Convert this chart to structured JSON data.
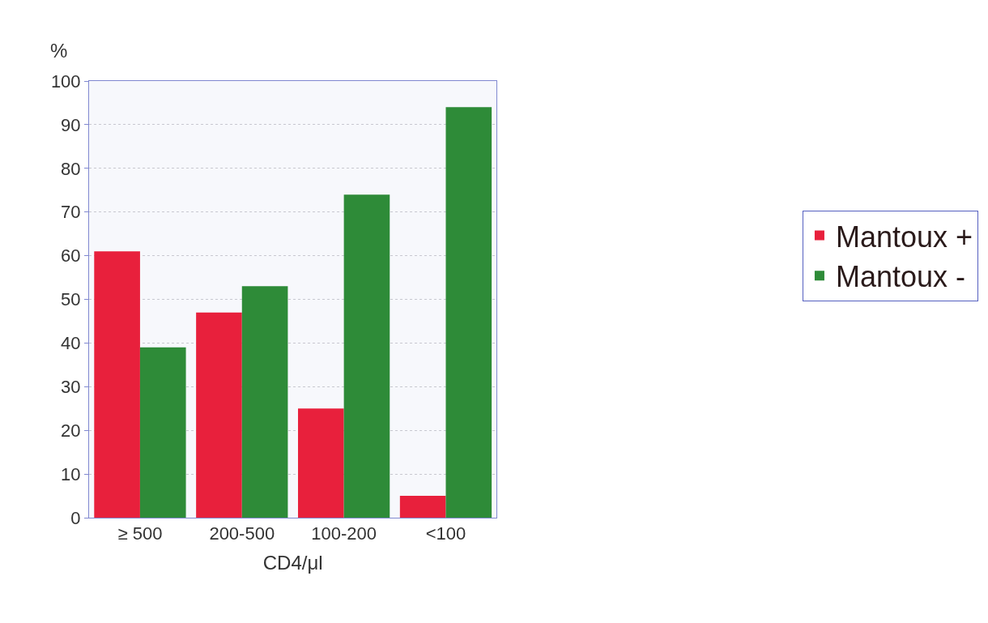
{
  "chart_data": {
    "type": "bar",
    "ylabel": "%",
    "xlabel": "CD4/μl",
    "categories": [
      "≥ 500",
      "200-500",
      "100-200",
      "<100"
    ],
    "series": [
      {
        "name": "Mantoux +",
        "color": "#e8203c",
        "values": [
          61,
          47,
          25,
          5
        ]
      },
      {
        "name": "Mantoux -",
        "color": "#2e8b38",
        "values": [
          39,
          53,
          74,
          94
        ]
      }
    ],
    "ylim": [
      0,
      100
    ],
    "yticks": [
      0,
      10,
      20,
      30,
      40,
      50,
      60,
      70,
      80,
      90,
      100
    ],
    "grid": "y",
    "legend": "right"
  }
}
